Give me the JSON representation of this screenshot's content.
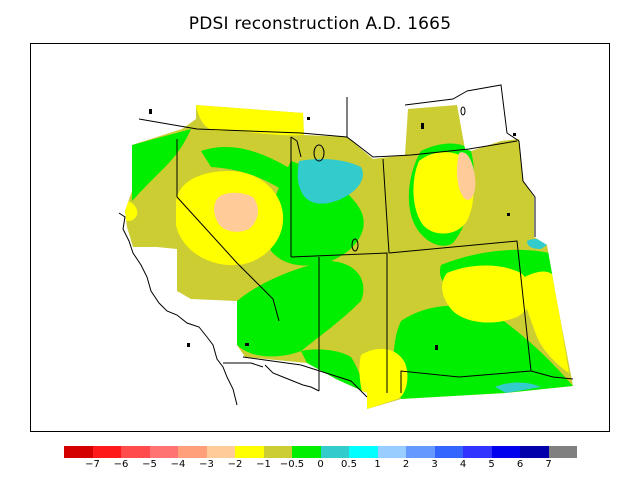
{
  "title": "PDSI reconstruction A.D. 1665",
  "map": {
    "region": "Western United States",
    "legend": {
      "colors": [
        "#d40000",
        "#ff1a1a",
        "#ff4b4b",
        "#ff7373",
        "#ffa07a",
        "#ffcc99",
        "#ffff00",
        "#cccc33",
        "#00ee00",
        "#33cccc",
        "#00ffff",
        "#99ccff",
        "#6699ff",
        "#3366ff",
        "#3333ff",
        "#0000ee",
        "#0000aa",
        "#808080"
      ],
      "labels": [
        "−7",
        "−6",
        "−5",
        "−4",
        "−3",
        "−2",
        "−1",
        "−0.5",
        "0",
        "0.5",
        "1",
        "2",
        "3",
        "4",
        "5",
        "6",
        "7"
      ]
    }
  }
}
